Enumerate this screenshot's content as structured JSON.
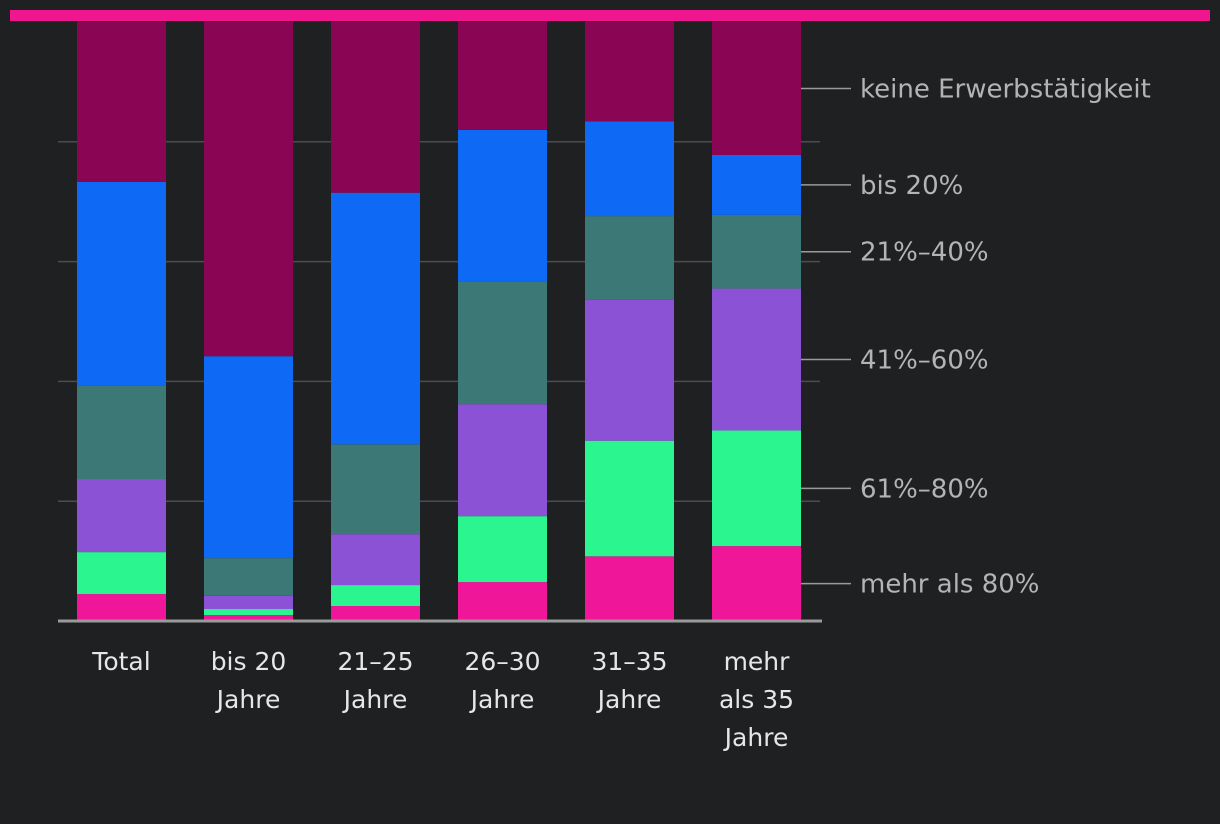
{
  "chart_data": {
    "type": "bar",
    "stacked": true,
    "normalized": true,
    "title": "",
    "xlabel": "",
    "ylabel": "",
    "ylim": [
      0,
      100
    ],
    "grid": true,
    "legend_position": "right",
    "categories": [
      [
        "Total"
      ],
      [
        "bis 20",
        "Jahre"
      ],
      [
        "21–25",
        "Jahre"
      ],
      [
        "26–30",
        "Jahre"
      ],
      [
        "31–35",
        "Jahre"
      ],
      [
        "mehr",
        "als 35",
        "Jahre"
      ]
    ],
    "series": [
      {
        "name": "mehr als 80%",
        "color": "#f0169a",
        "values": [
          4.5,
          1.0,
          2.5,
          6.5,
          10.8,
          12.5
        ]
      },
      {
        "name": "61%–80%",
        "color": "#2af58e",
        "values": [
          7.0,
          1.0,
          3.5,
          11.0,
          19.3,
          19.3
        ]
      },
      {
        "name": "41%–60%",
        "color": "#8c52d6",
        "values": [
          12.2,
          2.2,
          8.5,
          18.7,
          23.5,
          23.7
        ]
      },
      {
        "name": "21%–40%",
        "color": "#3b7876",
        "values": [
          15.6,
          6.3,
          15.0,
          20.5,
          14.0,
          12.3
        ]
      },
      {
        "name": "bis 20%",
        "color": "#0e6af5",
        "values": [
          34.0,
          33.7,
          42.0,
          25.3,
          15.8,
          10.0
        ]
      },
      {
        "name": "keine Erwerbstätigkeit",
        "color": "#8a0554",
        "values": [
          26.7,
          55.8,
          28.5,
          18.0,
          16.6,
          22.2
        ]
      }
    ]
  },
  "accent_color": "#f0168f"
}
